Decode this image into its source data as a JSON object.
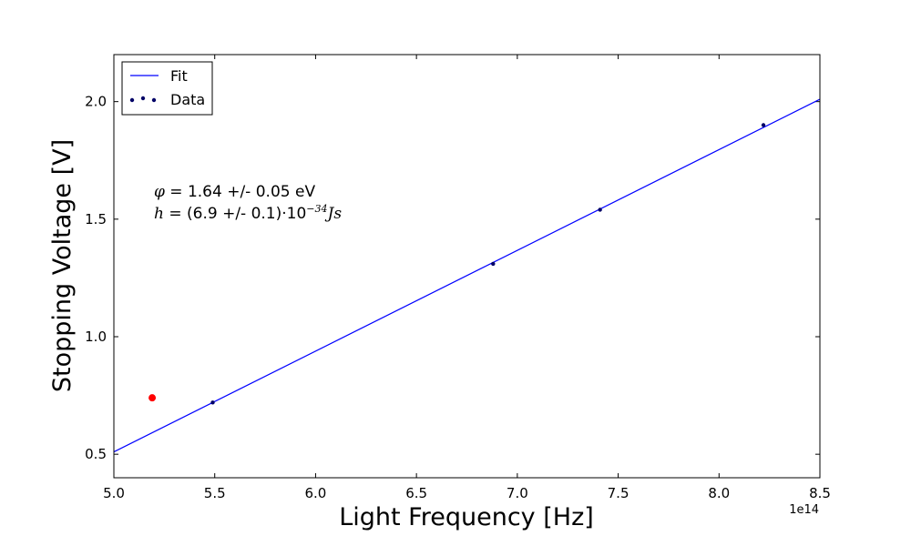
{
  "chart_data": {
    "type": "scatter",
    "x_offset_label": "1e14",
    "xlabel": "Light Frequency [Hz]",
    "ylabel": "Stopping Voltage [V]",
    "xlim": [
      5.0,
      8.5
    ],
    "ylim": [
      0.4,
      2.2
    ],
    "xticks": [
      "5.0",
      "5.5",
      "6.0",
      "6.5",
      "7.0",
      "7.5",
      "8.0",
      "8.5"
    ],
    "yticks": [
      "0.5",
      "1.0",
      "1.5",
      "2.0"
    ],
    "legend": {
      "position": "upper-left",
      "entries": [
        {
          "label": "Fit",
          "kind": "line",
          "color": "#0000ff"
        },
        {
          "label": "Data",
          "kind": "points",
          "color": "#000066"
        }
      ]
    },
    "series": [
      {
        "name": "Fit",
        "kind": "line",
        "color": "#0000ff",
        "x": [
          5.0,
          8.5
        ],
        "y": [
          0.51,
          2.01
        ]
      },
      {
        "name": "Data",
        "kind": "scatter",
        "color": "#000066",
        "x": [
          5.49,
          6.88,
          7.41,
          8.22
        ],
        "y": [
          0.72,
          1.31,
          1.54,
          1.9
        ]
      },
      {
        "kind": "scatter",
        "color": "#ff0000",
        "x": [
          5.19
        ],
        "y": [
          0.74
        ]
      }
    ],
    "annotations": [
      {
        "symbol": "φ",
        "text": " = 1.64 +/- 0.05 eV"
      },
      {
        "symbol": "h",
        "text": " = (6.9 +/- 0.1)·10",
        "exponent": "−34",
        "suffix": "Js"
      }
    ],
    "grid": false
  }
}
